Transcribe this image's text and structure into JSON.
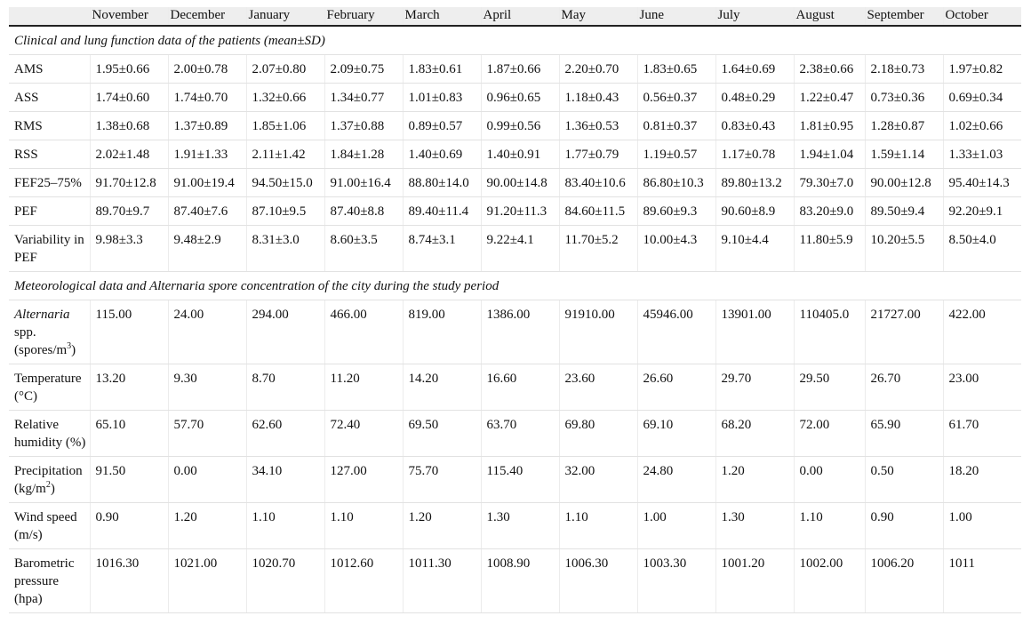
{
  "table": {
    "columns": [
      "November",
      "December",
      "January",
      "February",
      "March",
      "April",
      "May",
      "June",
      "July",
      "August",
      "September",
      "October"
    ],
    "sections": [
      {
        "title": "Clinical and lung function data of the patients (mean±SD)",
        "rows": [
          {
            "label": "AMS",
            "values": [
              "1.95±0.66",
              "2.00±0.78",
              "2.07±0.80",
              "2.09±0.75",
              "1.83±0.61",
              "1.87±0.66",
              "2.20±0.70",
              "1.83±0.65",
              "1.64±0.69",
              "2.38±0.66",
              "2.18±0.73",
              "1.97±0.82"
            ]
          },
          {
            "label": "ASS",
            "values": [
              "1.74±0.60",
              "1.74±0.70",
              "1.32±0.66",
              "1.34±0.77",
              "1.01±0.83",
              "0.96±0.65",
              "1.18±0.43",
              "0.56±0.37",
              "0.48±0.29",
              "1.22±0.47",
              "0.73±0.36",
              "0.69±0.34"
            ]
          },
          {
            "label": "RMS",
            "values": [
              "1.38±0.68",
              "1.37±0.89",
              "1.85±1.06",
              "1.37±0.88",
              "0.89±0.57",
              "0.99±0.56",
              "1.36±0.53",
              "0.81±0.37",
              "0.83±0.43",
              "1.81±0.95",
              "1.28±0.87",
              "1.02±0.66"
            ]
          },
          {
            "label": "RSS",
            "values": [
              "2.02±1.48",
              "1.91±1.33",
              "2.11±1.42",
              "1.84±1.28",
              "1.40±0.69",
              "1.40±0.91",
              "1.77±0.79",
              "1.19±0.57",
              "1.17±0.78",
              "1.94±1.04",
              "1.59±1.14",
              "1.33±1.03"
            ]
          },
          {
            "label": "FEF25–75%",
            "values": [
              "91.70±12.8",
              "91.00±19.4",
              "94.50±15.0",
              "91.00±16.4",
              "88.80±14.0",
              "90.00±14.8",
              "83.40±10.6",
              "86.80±10.3",
              "89.80±13.2",
              "79.30±7.0",
              "90.00±12.8",
              "95.40±14.3"
            ]
          },
          {
            "label": "PEF",
            "values": [
              "89.70±9.7",
              "87.40±7.6",
              "87.10±9.5",
              "87.40±8.8",
              "89.40±11.4",
              "91.20±11.3",
              "84.60±11.5",
              "89.60±9.3",
              "90.60±8.9",
              "83.20±9.0",
              "89.50±9.4",
              "92.20±9.1"
            ]
          },
          {
            "label": "Variability in PEF",
            "values": [
              "9.98±3.3",
              "9.48±2.9",
              "8.31±3.0",
              "8.60±3.5",
              "8.74±3.1",
              "9.22±4.1",
              "11.70±5.2",
              "10.00±4.3",
              "9.10±4.4",
              "11.80±5.9",
              "10.20±5.5",
              "8.50±4.0"
            ]
          }
        ]
      },
      {
        "title": "Meteorological data and Alternaria spore concentration of the city during the study period",
        "rows": [
          {
            "label_parts": [
              {
                "text": "Alternaria",
                "style": "italic"
              },
              {
                "text": " spp. (spores/m"
              },
              {
                "text": "3",
                "style": "sup"
              },
              {
                "text": ")"
              }
            ],
            "values": [
              "115.00",
              "24.00",
              "294.00",
              "466.00",
              "819.00",
              "1386.00",
              "91910.00",
              "45946.00",
              "13901.00",
              "110405.0",
              "21727.00",
              "422.00"
            ]
          },
          {
            "label": "Temperature (°C)",
            "values": [
              "13.20",
              "9.30",
              "8.70",
              "11.20",
              "14.20",
              "16.60",
              "23.60",
              "26.60",
              "29.70",
              "29.50",
              "26.70",
              "23.00"
            ]
          },
          {
            "label": "Relative humidity (%)",
            "values": [
              "65.10",
              "57.70",
              "62.60",
              "72.40",
              "69.50",
              "63.70",
              "69.80",
              "69.10",
              "68.20",
              "72.00",
              "65.90",
              "61.70"
            ]
          },
          {
            "label_parts": [
              {
                "text": "Precipitation (kg/m"
              },
              {
                "text": "2",
                "style": "sup"
              },
              {
                "text": ")"
              }
            ],
            "values": [
              "91.50",
              "0.00",
              "34.10",
              "127.00",
              "75.70",
              "115.40",
              "32.00",
              "24.80",
              "1.20",
              "0.00",
              "0.50",
              "18.20"
            ]
          },
          {
            "label": "Wind speed (m/s)",
            "values": [
              "0.90",
              "1.20",
              "1.10",
              "1.10",
              "1.20",
              "1.30",
              "1.10",
              "1.00",
              "1.30",
              "1.10",
              "0.90",
              "1.00"
            ]
          },
          {
            "label": "Barometric pressure (hpa)",
            "values": [
              "1016.30",
              "1021.00",
              "1020.70",
              "1012.60",
              "1011.30",
              "1008.90",
              "1006.30",
              "1003.30",
              "1001.20",
              "1002.00",
              "1006.20",
              "1011"
            ]
          }
        ]
      }
    ]
  }
}
